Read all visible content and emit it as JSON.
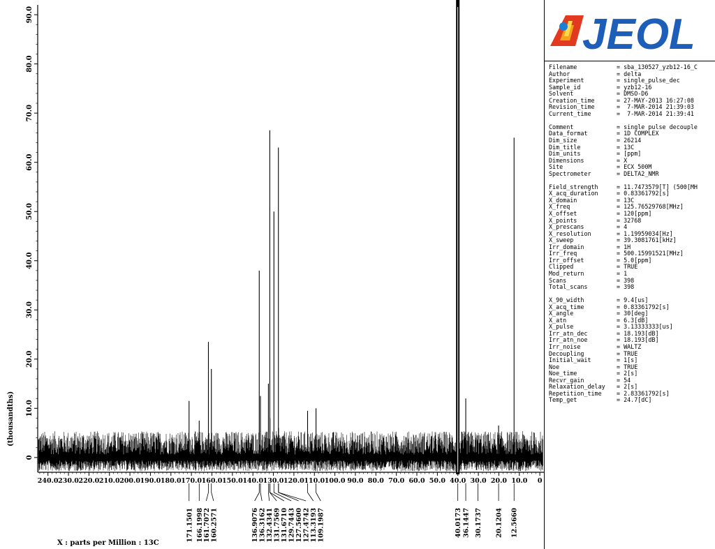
{
  "brand": {
    "logo_text": "JEOL"
  },
  "chart_data": {
    "type": "line",
    "title": "",
    "xlabel": "X : parts per Million : 13C",
    "ylabel": "(thousandths)",
    "xlim": [
      245,
      -2
    ],
    "ylim": [
      -3,
      92
    ],
    "x_ticks": [
      {
        "v": 240,
        "t": "240.0"
      },
      {
        "v": 230,
        "t": "230.0"
      },
      {
        "v": 220,
        "t": "220.0"
      },
      {
        "v": 210,
        "t": "210.0"
      },
      {
        "v": 200,
        "t": "200.0"
      },
      {
        "v": 190,
        "t": "190.0"
      },
      {
        "v": 180,
        "t": "180.0"
      },
      {
        "v": 170,
        "t": "170.0"
      },
      {
        "v": 160,
        "t": "160.0"
      },
      {
        "v": 150,
        "t": "150.0"
      },
      {
        "v": 140,
        "t": "140.0"
      },
      {
        "v": 130,
        "t": "130.0"
      },
      {
        "v": 120,
        "t": "120.0"
      },
      {
        "v": 110,
        "t": "110.0"
      },
      {
        "v": 100,
        "t": "100.0"
      },
      {
        "v": 90,
        "t": "90.0"
      },
      {
        "v": 80,
        "t": "80.0"
      },
      {
        "v": 70,
        "t": "70.0"
      },
      {
        "v": 60,
        "t": "60.0"
      },
      {
        "v": 50,
        "t": "50.0"
      },
      {
        "v": 40,
        "t": "40.0"
      },
      {
        "v": 30,
        "t": "30.0"
      },
      {
        "v": 20,
        "t": "20.0"
      },
      {
        "v": 10,
        "t": "10.0"
      },
      {
        "v": 0,
        "t": "0"
      }
    ],
    "y_ticks": [
      {
        "v": 0,
        "t": "0"
      },
      {
        "v": 10,
        "t": "10.0"
      },
      {
        "v": 20,
        "t": "20.0"
      },
      {
        "v": 30,
        "t": "30.0"
      },
      {
        "v": 40,
        "t": "40.0"
      },
      {
        "v": 50,
        "t": "50.0"
      },
      {
        "v": 60,
        "t": "60.0"
      },
      {
        "v": 70,
        "t": "70.0"
      },
      {
        "v": 80,
        "t": "80.0"
      },
      {
        "v": 90,
        "t": "90.0"
      }
    ],
    "noise_amplitude": 5,
    "peaks": [
      {
        "ppm": 171.1501,
        "height": 11.5,
        "label": "171.1501"
      },
      {
        "ppm": 166.1998,
        "height": 7.5,
        "label": "166.1998"
      },
      {
        "ppm": 161.7072,
        "height": 23.5,
        "label": "161.7072"
      },
      {
        "ppm": 160.2571,
        "height": 18,
        "label": "160.2571"
      },
      {
        "ppm": 136.9076,
        "height": 38,
        "label": "136.9076"
      },
      {
        "ppm": 136.3162,
        "height": 12.5,
        "label": "136.3162"
      },
      {
        "ppm": 132.4341,
        "height": 15,
        "label": "132.4341"
      },
      {
        "ppm": 131.7569,
        "height": 66.5,
        "label": "131.7569"
      },
      {
        "ppm": 131.671,
        "height": 8,
        "label": "131.6710"
      },
      {
        "ppm": 129.7443,
        "height": 50,
        "label": "129.7443"
      },
      {
        "ppm": 127.56,
        "height": 63,
        "label": "127.5600"
      },
      {
        "ppm": 127.4742,
        "height": 6,
        "label": "127.4742"
      },
      {
        "ppm": 113.3193,
        "height": 9.5,
        "label": "113.3193"
      },
      {
        "ppm": 109.1987,
        "height": 10,
        "label": "109.1987"
      },
      {
        "ppm": 40.0173,
        "height": 100,
        "label": "40.0173"
      },
      {
        "ppm": 36.1447,
        "height": 12,
        "label": "36.1447"
      },
      {
        "ppm": 30.1737,
        "height": 4.5,
        "label": "30.1737"
      },
      {
        "ppm": 20.1204,
        "height": 6.5,
        "label": "20.1204"
      },
      {
        "ppm": 12.566,
        "height": 65,
        "label": "12.5660"
      }
    ]
  },
  "parameters": [
    {
      "name": "Filename",
      "value": "= sba_130527_yzb12-16_C"
    },
    {
      "name": "Author",
      "value": "= delta"
    },
    {
      "name": "Experiment",
      "value": "= single_pulse_dec"
    },
    {
      "name": "Sample_id",
      "value": "= yzb12-16"
    },
    {
      "name": "Solvent",
      "value": "= DMSO-D6"
    },
    {
      "name": "Creation_time",
      "value": "= 27-MAY-2013 16:27:08"
    },
    {
      "name": "Revision_time",
      "value": "=  7-MAR-2014 21:39:03"
    },
    {
      "name": "Current_time",
      "value": "=  7-MAR-2014 21:39:41"
    },
    {
      "name": "",
      "value": ""
    },
    {
      "name": "Comment",
      "value": "= single pulse decouple"
    },
    {
      "name": "Data_format",
      "value": "= 1D COMPLEX"
    },
    {
      "name": "Dim_size",
      "value": "= 26214"
    },
    {
      "name": "Dim_title",
      "value": "= 13C"
    },
    {
      "name": "Dim_units",
      "value": "= [ppm]"
    },
    {
      "name": "Dimensions",
      "value": "= X"
    },
    {
      "name": "Site",
      "value": "= ECX 500M"
    },
    {
      "name": "Spectrometer",
      "value": "= DELTA2_NMR"
    },
    {
      "name": "",
      "value": ""
    },
    {
      "name": "Field_strength",
      "value": "= 11.7473579[T] (500[MH"
    },
    {
      "name": "X_acq_duration",
      "value": "= 0.83361792[s]"
    },
    {
      "name": "X_domain",
      "value": "= 13C"
    },
    {
      "name": "X_freq",
      "value": "= 125.76529768[MHz]"
    },
    {
      "name": "X_offset",
      "value": "= 120[ppm]"
    },
    {
      "name": "X_points",
      "value": "= 32768"
    },
    {
      "name": "X_prescans",
      "value": "= 4"
    },
    {
      "name": "X_resolution",
      "value": "= 1.19959034[Hz]"
    },
    {
      "name": "X_sweep",
      "value": "= 39.3081761[kHz]"
    },
    {
      "name": "Irr_domain",
      "value": "= 1H"
    },
    {
      "name": "Irr_freq",
      "value": "= 500.15991521[MHz]"
    },
    {
      "name": "Irr_offset",
      "value": "= 5.0[ppm]"
    },
    {
      "name": "Clipped",
      "value": "= TRUE"
    },
    {
      "name": "Mod_return",
      "value": "= 1"
    },
    {
      "name": "Scans",
      "value": "= 398"
    },
    {
      "name": "Total_scans",
      "value": "= 398"
    },
    {
      "name": "",
      "value": ""
    },
    {
      "name": "X_90_width",
      "value": "= 9.4[us]"
    },
    {
      "name": "X_acq_time",
      "value": "= 0.83361792[s]"
    },
    {
      "name": "X_angle",
      "value": "= 30[deg]"
    },
    {
      "name": "X_atn",
      "value": "= 6.3[dB]"
    },
    {
      "name": "X_pulse",
      "value": "= 3.13333333[us]"
    },
    {
      "name": "Irr_atn_dec",
      "value": "= 18.193[dB]"
    },
    {
      "name": "Irr_atn_noe",
      "value": "= 18.193[dB]"
    },
    {
      "name": "Irr_noise",
      "value": "= WALTZ"
    },
    {
      "name": "Decoupling",
      "value": "= TRUE"
    },
    {
      "name": "Initial_wait",
      "value": "= 1[s]"
    },
    {
      "name": "Noe",
      "value": "= TRUE"
    },
    {
      "name": "Noe_time",
      "value": "= 2[s]"
    },
    {
      "name": "Recvr_gain",
      "value": "= 54"
    },
    {
      "name": "Relaxation_delay",
      "value": "= 2[s]"
    },
    {
      "name": "Repetition_time",
      "value": "= 2.83361792[s]"
    },
    {
      "name": "Temp_get",
      "value": "= 24.7[dC]"
    }
  ]
}
